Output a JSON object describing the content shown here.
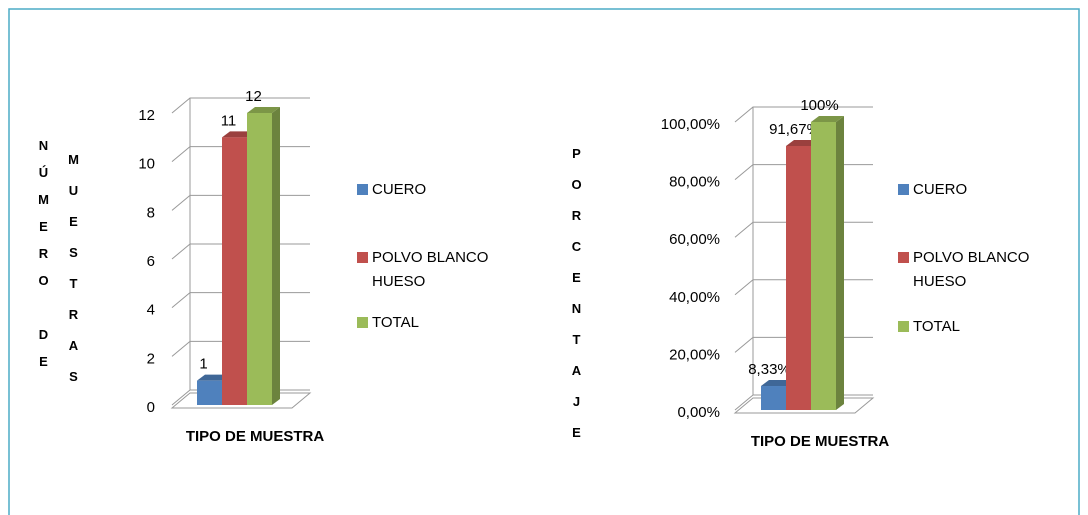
{
  "chart_data": [
    {
      "type": "bar",
      "ylabel": [
        "NÚMERO DE",
        "MUESTRAS"
      ],
      "xlabel": "TIPO DE MUESTRA",
      "series": [
        {
          "name": "CUERO",
          "color": "#4f81bd",
          "values": [
            1
          ]
        },
        {
          "name": "POLVO BLANCO HUESO",
          "color": "#c0504d",
          "values": [
            11
          ]
        },
        {
          "name": "TOTAL",
          "color": "#9bbb59",
          "values": [
            12
          ]
        }
      ],
      "ylim": [
        0,
        12
      ],
      "yticks": [
        0,
        2,
        4,
        6,
        8,
        10,
        12
      ],
      "grid": true,
      "legend": "right"
    },
    {
      "type": "bar",
      "ylabel": [
        "PORCENTAJE"
      ],
      "xlabel": "TIPO DE MUESTRA",
      "series": [
        {
          "name": "CUERO",
          "color": "#4f81bd",
          "values": [
            8.33
          ],
          "value_labels": [
            "8,33%"
          ]
        },
        {
          "name": "POLVO BLANCO HUESO",
          "color": "#c0504d",
          "values": [
            91.67
          ],
          "value_labels": [
            "91,67%"
          ]
        },
        {
          "name": "TOTAL",
          "color": "#9bbb59",
          "values": [
            100
          ],
          "value_labels": [
            "100%"
          ]
        }
      ],
      "ylim": [
        0,
        100
      ],
      "yticks": [
        {
          "value": 0,
          "label": "0,00%"
        },
        {
          "value": 20,
          "label": "20,00%"
        },
        {
          "value": 40,
          "label": "40,00%"
        },
        {
          "value": 60,
          "label": "60,00%"
        },
        {
          "value": 80,
          "label": "80,00%"
        },
        {
          "value": 100,
          "label": "100,00%"
        }
      ],
      "grid": true,
      "legend": "right"
    }
  ]
}
